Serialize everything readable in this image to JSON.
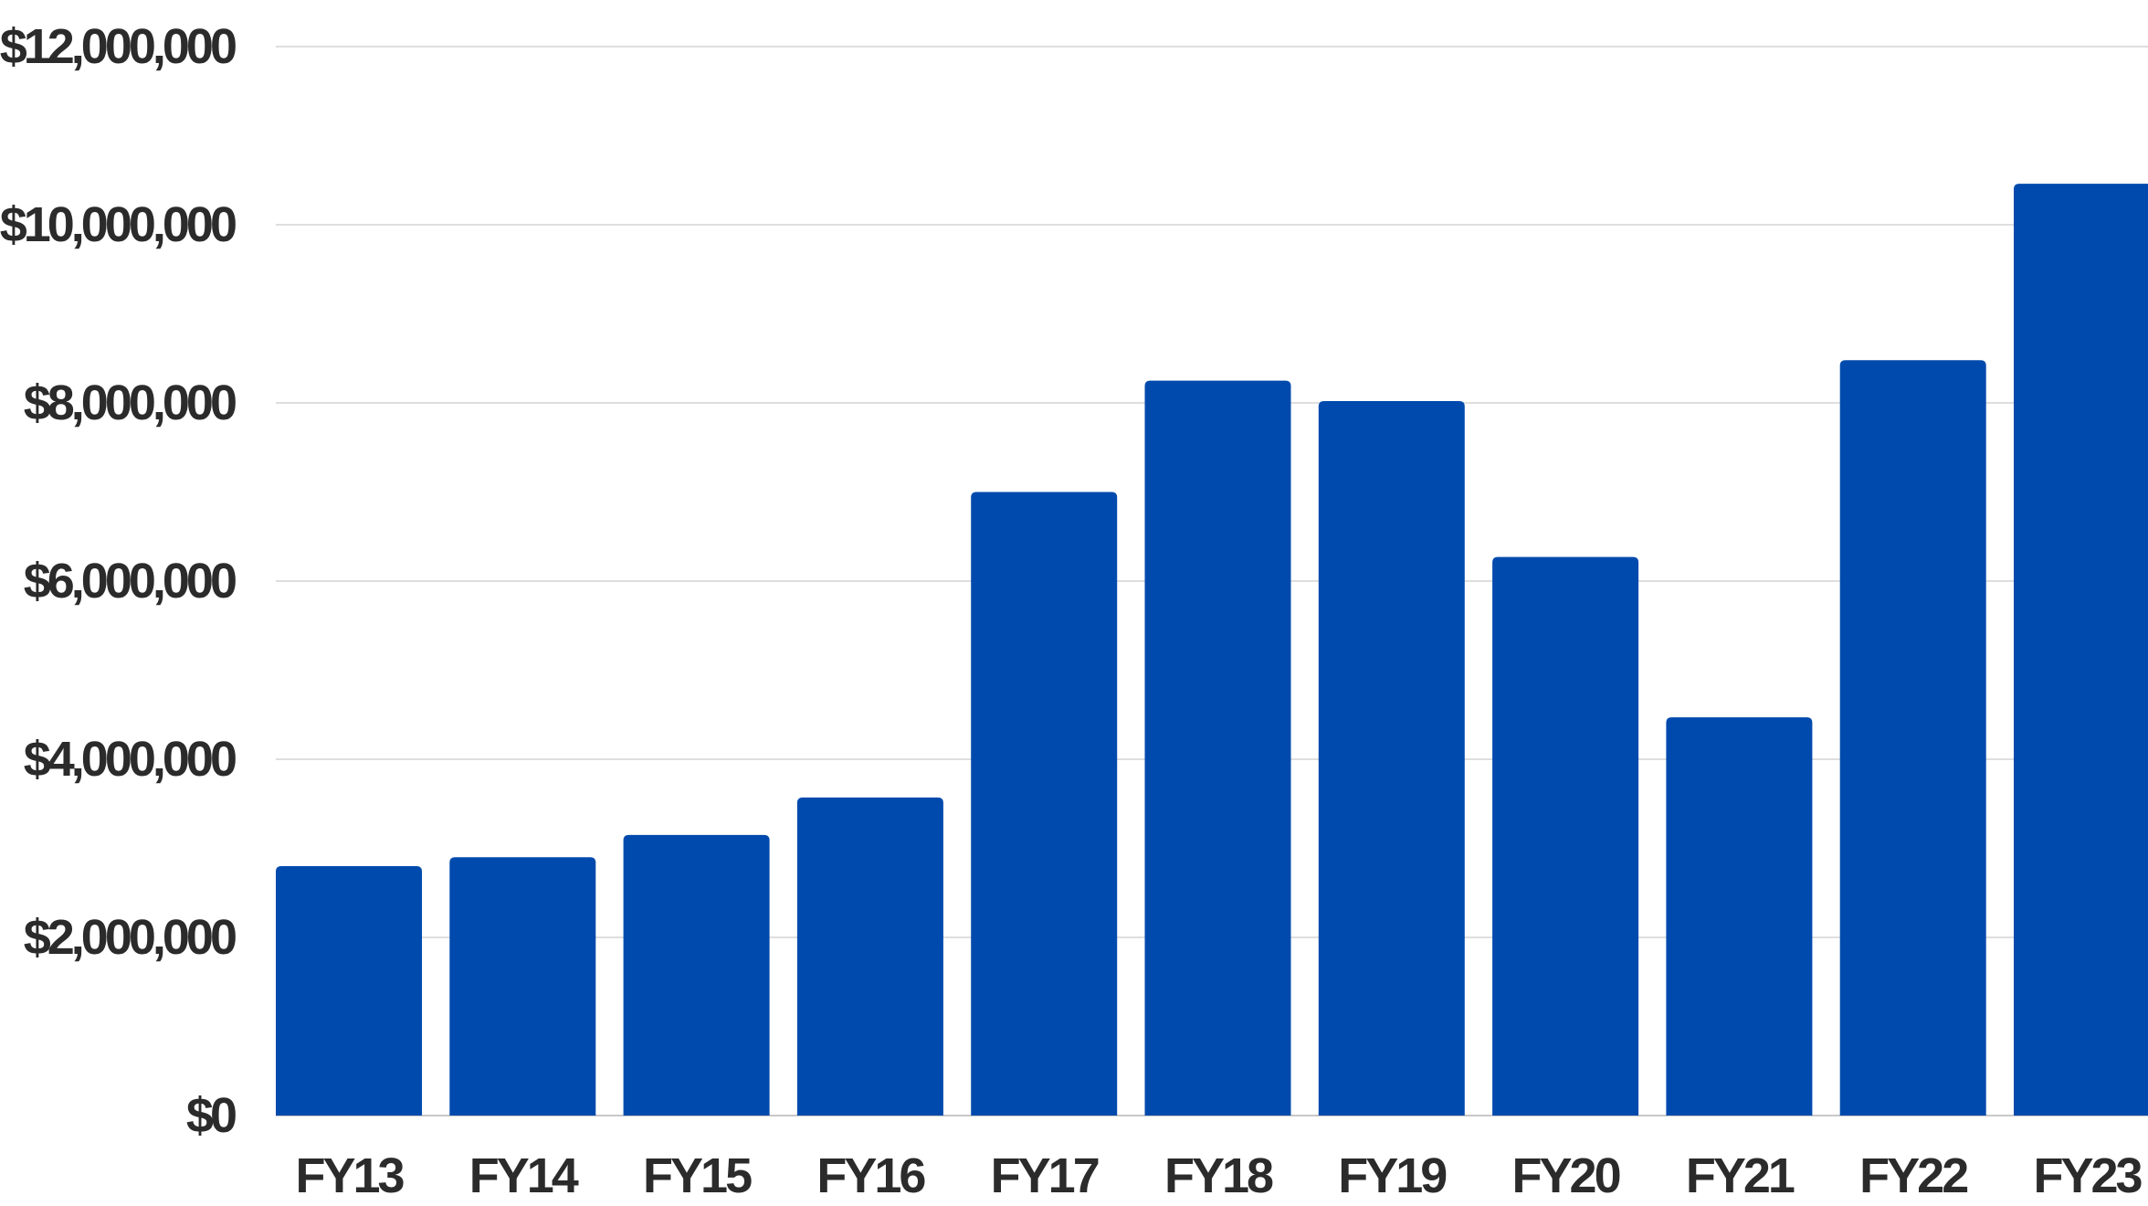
{
  "chart_data": {
    "type": "bar",
    "title": "",
    "xlabel": "",
    "ylabel": "",
    "categories": [
      "FY13",
      "FY14",
      "FY15",
      "FY16",
      "FY17",
      "FY18",
      "FY19",
      "FY20",
      "FY21",
      "FY22",
      "FY23"
    ],
    "values": [
      2800000,
      2900000,
      3150000,
      3570000,
      7000000,
      8250000,
      8020000,
      6270000,
      4470000,
      8480000,
      10460000
    ],
    "ylim": [
      0,
      12000000
    ],
    "yticks": [
      0,
      2000000,
      4000000,
      6000000,
      8000000,
      10000000,
      12000000
    ],
    "ytick_labels": [
      "$0",
      "$2,000,000",
      "$4,000,000",
      "$6,000,000",
      "$8,000,000",
      "$10,000,000",
      "$12,000,000"
    ],
    "grid": true,
    "legend": "none",
    "colors": {
      "bar": "#004aad",
      "grid": "#dedede",
      "text": "#2b2b2b"
    }
  }
}
